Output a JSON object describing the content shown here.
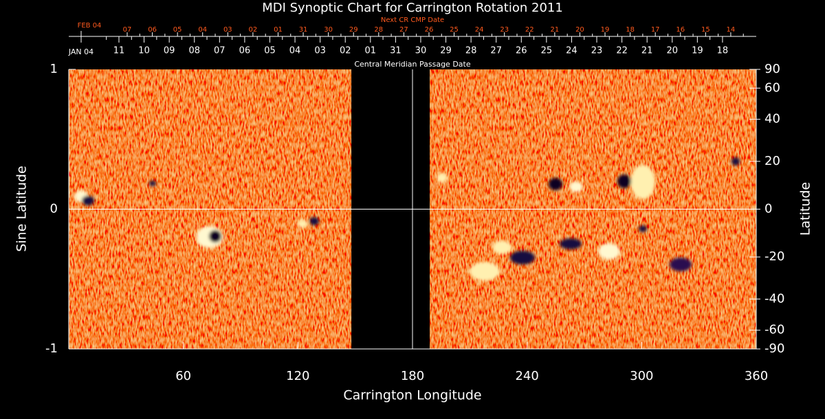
{
  "chart_data": {
    "type": "synoptic-map",
    "title": "MDI Synoptic Chart for Carrington Rotation 2011",
    "x_label": "Carrington Longitude",
    "y_label": "Sine Latitude",
    "y2_label": "Latitude",
    "xlim": [
      0,
      360
    ],
    "xticks": [
      60,
      120,
      180,
      240,
      300,
      360
    ],
    "ylim": [
      -1,
      1
    ],
    "yticks": [
      1,
      0,
      -1
    ],
    "y2ticks": [
      90,
      60,
      40,
      20,
      0,
      -20,
      -40,
      -60,
      -90
    ],
    "reference_longitude": 180,
    "reference_sine_latitude": 0,
    "data_gap": [
      148,
      189
    ],
    "top_axis": {
      "title": "Next CR CMP Date",
      "start_label": "FEB 04",
      "dates": [
        "07",
        "06",
        "05",
        "04",
        "03",
        "02",
        "01",
        "31",
        "30",
        "29",
        "28",
        "27",
        "26",
        "25",
        "24",
        "23",
        "22",
        "21",
        "20",
        "19",
        "18",
        "17",
        "16",
        "15",
        "14"
      ]
    },
    "date_axis": {
      "title": "Central Meridian Passage Date",
      "start_label": "JAN 04",
      "dates": [
        "11",
        "10",
        "09",
        "08",
        "07",
        "06",
        "05",
        "04",
        "03",
        "02",
        "01",
        "31",
        "30",
        "29",
        "28",
        "27",
        "26",
        "25",
        "24",
        "23",
        "22",
        "21",
        "20",
        "19",
        "18"
      ]
    }
  }
}
